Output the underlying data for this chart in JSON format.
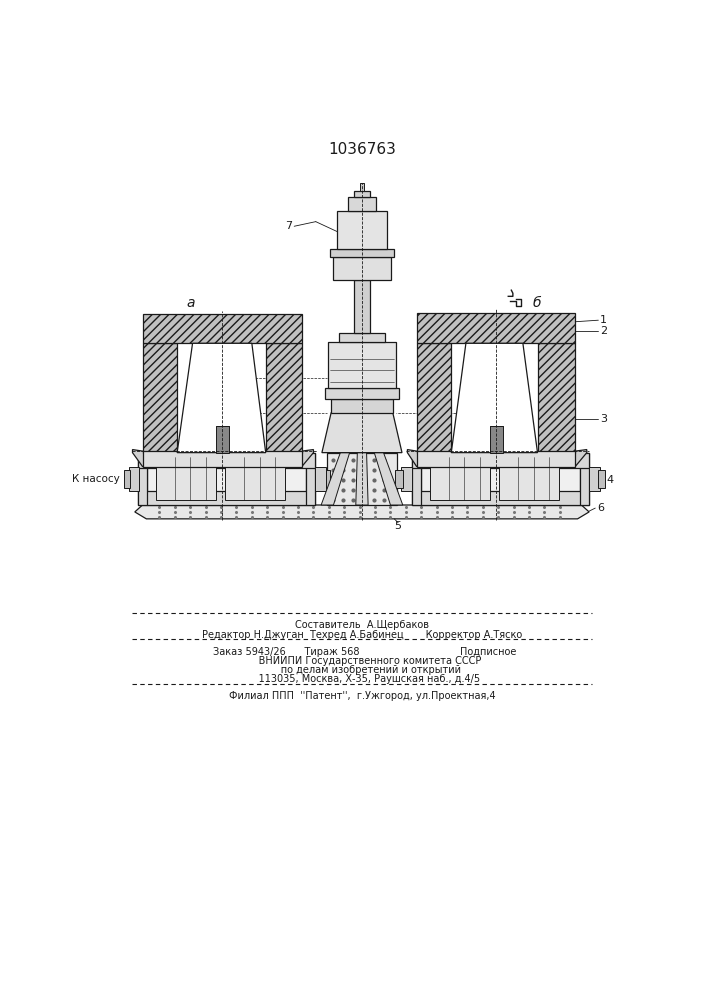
{
  "patent_number": "1036763",
  "label_a": "а",
  "label_b": "б",
  "label_7": "7",
  "label_1": "1",
  "label_2": "2",
  "label_3": "3",
  "label_4": "4",
  "label_5": "5",
  "label_6": "6",
  "k_nasosu": "К насосу",
  "footer_line1": "Составитель  А.Щербаков",
  "footer_line2": "Редактор Н.Джуган  Техред А.Бабинец       Корректор А.Тяско",
  "footer_line3_left": "Заказ 5943/26      Тираж 568",
  "footer_line3_right": "Подписное",
  "footer_line4": "     ВНИИПИ Государственного комитета СССР",
  "footer_line5": "      по делам изобретений и открытий",
  "footer_line6": "     113035, Москва, Х-35, Раушская наб., д.4/5",
  "footer_line7": "Филиал ППП  ''Патент'',  г.Ужгород, ул.Проектная,4",
  "bg_color": "#ffffff",
  "line_color": "#1a1a1a"
}
